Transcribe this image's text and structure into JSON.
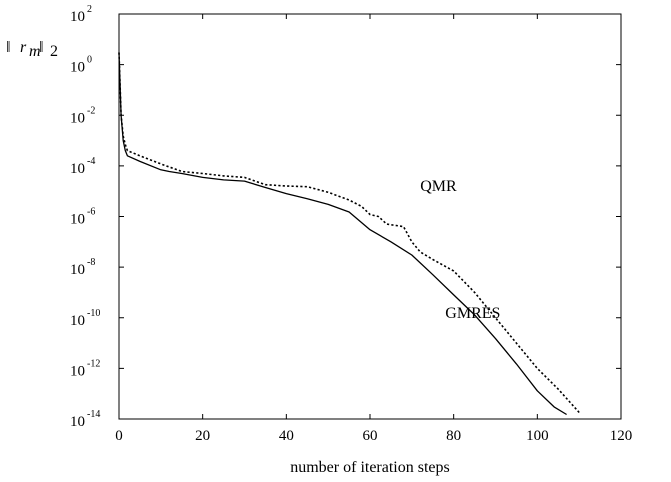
{
  "chart_data": {
    "type": "line",
    "xlabel": "number of iteration steps",
    "ylabel": "||r_m||_2",
    "xlim": [
      0,
      120
    ],
    "ylim_exponent": [
      -14,
      2
    ],
    "y_scale": "log",
    "grid": false,
    "x_ticks": [
      "0",
      "20",
      "40",
      "60",
      "80",
      "100",
      "120"
    ],
    "y_ticks": [
      {
        "base": "10",
        "exp": "2"
      },
      {
        "base": "10",
        "exp": "0"
      },
      {
        "base": "10",
        "exp": "-2"
      },
      {
        "base": "10",
        "exp": "-4"
      },
      {
        "base": "10",
        "exp": "-6"
      },
      {
        "base": "10",
        "exp": "-8"
      },
      {
        "base": "10",
        "exp": "-10"
      },
      {
        "base": "10",
        "exp": "-12"
      },
      {
        "base": "10",
        "exp": "-14"
      }
    ],
    "annotations": [
      {
        "text": "QMR",
        "x": 72,
        "y": 1e-05
      },
      {
        "text": "GMRES",
        "x": 78,
        "y": 1e-10
      }
    ],
    "series": [
      {
        "name": "GMRES",
        "style": "solid",
        "color": "#000000",
        "x": [
          0,
          0.5,
          1,
          1.5,
          2,
          5,
          10,
          12,
          15,
          20,
          25,
          30,
          35,
          40,
          45,
          50,
          55,
          60,
          65,
          70,
          75,
          80,
          85,
          90,
          95,
          100,
          104,
          107
        ],
        "y": [
          3.0,
          0.01,
          0.001,
          0.0004,
          0.00025,
          0.00015,
          7e-05,
          6e-05,
          5e-05,
          3.5e-05,
          2.8e-05,
          2.5e-05,
          1.4e-05,
          8e-06,
          5e-06,
          3e-06,
          1.5e-06,
          3e-07,
          1e-07,
          3e-08,
          5e-09,
          8e-10,
          1.3e-10,
          1.5e-11,
          1.5e-12,
          1.3e-13,
          3e-14,
          1.5e-14
        ]
      },
      {
        "name": "QMR",
        "style": "dotted",
        "color": "#000000",
        "x": [
          0,
          0.5,
          1,
          1.5,
          2,
          5,
          10,
          15,
          20,
          25,
          30,
          35,
          40,
          45,
          50,
          55,
          58,
          60,
          62,
          64,
          68,
          70,
          72,
          75,
          80,
          85,
          90,
          95,
          100,
          105,
          110
        ],
        "y": [
          3.0,
          0.01,
          0.0015,
          0.0007,
          0.0004,
          0.00025,
          0.00012,
          6e-05,
          5e-05,
          4e-05,
          3.5e-05,
          1.8e-05,
          1.6e-05,
          1.5e-05,
          9e-06,
          4.5e-06,
          2.5e-06,
          1.2e-06,
          1e-06,
          5e-07,
          4e-07,
          1e-07,
          4e-08,
          2e-08,
          7e-09,
          1e-09,
          1e-10,
          1e-11,
          1e-12,
          1.5e-13,
          1.8e-14
        ]
      }
    ]
  }
}
